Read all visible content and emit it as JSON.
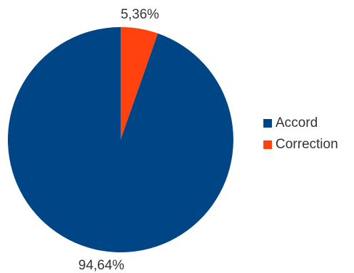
{
  "chart_data": {
    "type": "pie",
    "categories": [
      "Accord",
      "Correction"
    ],
    "values": [
      94.64,
      5.36
    ],
    "data_labels": [
      "94,64%",
      "5,36%"
    ],
    "colors": [
      "#004586",
      "#ff420e"
    ],
    "title": "",
    "legend": "right",
    "start": "top",
    "direction": "clockwise"
  }
}
